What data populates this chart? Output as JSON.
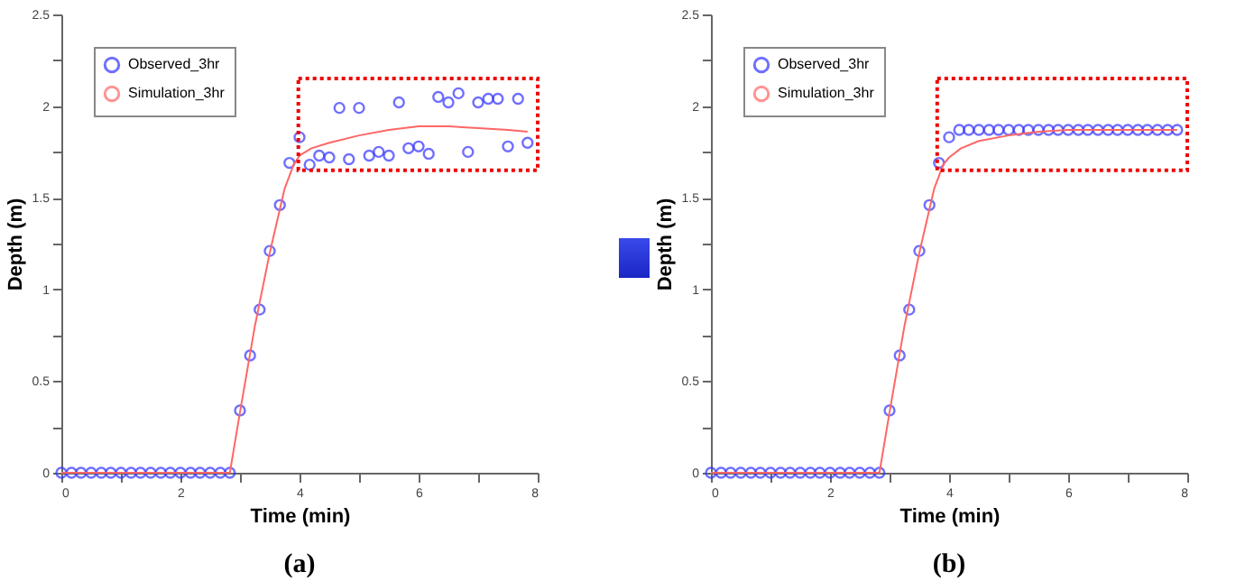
{
  "chart_data": [
    {
      "type": "scatter",
      "title": "(a)",
      "xlabel": "Time (min)",
      "ylabel": "Depth (m)",
      "xlim": [
        0,
        8
      ],
      "ylim": [
        0,
        2.5
      ],
      "xticks": [
        0,
        {
          "value": 1,
          "label": null
        },
        2,
        {
          "value": 3,
          "label": null
        },
        4,
        {
          "value": 5,
          "label": null
        },
        6,
        {
          "value": 7,
          "label": null
        },
        8
      ],
      "yticks": [
        0,
        {
          "value": 0.25,
          "label": null
        },
        0.5,
        {
          "value": 0.75,
          "label": null
        },
        1,
        {
          "value": 1.25,
          "label": null
        },
        1.5,
        {
          "value": 1.75,
          "label": null
        },
        2,
        {
          "value": 2.25,
          "label": null
        },
        2.5
      ],
      "legend": "top left",
      "line_style": "solid",
      "x": [
        0,
        0.17,
        0.33,
        0.5,
        0.67,
        0.83,
        1,
        1.17,
        1.33,
        1.5,
        1.67,
        1.83,
        2,
        2.17,
        2.33,
        2.5,
        2.67,
        2.83,
        3,
        3.17,
        3.33,
        3.5,
        3.67,
        3.83,
        4,
        4.17,
        4.33,
        4.5,
        4.67,
        4.83,
        5,
        5.17,
        5.33,
        5.5,
        5.67,
        5.83,
        6,
        6.17,
        6.33,
        6.5,
        6.67,
        6.83,
        7,
        7.17,
        7.33,
        7.5,
        7.67,
        7.83
      ],
      "series": [
        {
          "name": "Observed_3hr",
          "color": "#3333ff",
          "marker": "circle",
          "values": [
            0,
            0,
            0,
            0,
            0,
            0,
            0,
            0,
            0,
            0,
            0,
            0,
            0,
            0,
            0,
            0,
            0,
            0,
            0.34,
            0.64,
            0.89,
            1.21,
            1.46,
            1.69,
            1.83,
            1.68,
            1.73,
            1.72,
            1.99,
            1.71,
            1.99,
            1.73,
            1.75,
            1.73,
            2.02,
            1.77,
            1.78,
            1.74,
            2.05,
            2.02,
            2.07,
            1.75,
            2.02,
            2.04,
            2.04,
            1.78,
            2.04,
            1.8
          ]
        },
        {
          "name": "Simulation_3hr",
          "type": "line",
          "color": "#ff6666",
          "x": [
            0,
            2.83,
            3,
            3.25,
            3.5,
            3.75,
            3.9,
            4,
            4.2,
            4.5,
            5,
            5.5,
            6,
            6.5,
            7,
            7.5,
            7.83
          ],
          "values": [
            0,
            0,
            0.33,
            0.8,
            1.2,
            1.55,
            1.68,
            1.73,
            1.77,
            1.8,
            1.84,
            1.87,
            1.89,
            1.89,
            1.88,
            1.87,
            1.86
          ]
        }
      ]
    },
    {
      "type": "scatter",
      "title": "(b)",
      "xlabel": "Time (min)",
      "ylabel": "Depth (m)",
      "xlim": [
        0,
        8
      ],
      "ylim": [
        0,
        2.5
      ],
      "xticks": [
        0,
        {
          "value": 1,
          "label": null
        },
        2,
        {
          "value": 3,
          "label": null
        },
        4,
        {
          "value": 5,
          "label": null
        },
        6,
        {
          "value": 7,
          "label": null
        },
        8
      ],
      "yticks": [
        0,
        {
          "value": 0.25,
          "label": null
        },
        0.5,
        {
          "value": 0.75,
          "label": null
        },
        1,
        {
          "value": 1.25,
          "label": null
        },
        1.5,
        {
          "value": 1.75,
          "label": null
        },
        2,
        {
          "value": 2.25,
          "label": null
        },
        2.5
      ],
      "legend": "top left",
      "line_style": "solid",
      "x": [
        0,
        0.17,
        0.33,
        0.5,
        0.67,
        0.83,
        1,
        1.17,
        1.33,
        1.5,
        1.67,
        1.83,
        2,
        2.17,
        2.33,
        2.5,
        2.67,
        2.83,
        3,
        3.17,
        3.33,
        3.5,
        3.67,
        3.83,
        4,
        4.17,
        4.33,
        4.5,
        4.67,
        4.83,
        5,
        5.17,
        5.33,
        5.5,
        5.67,
        5.83,
        6,
        6.17,
        6.33,
        6.5,
        6.67,
        6.83,
        7,
        7.17,
        7.33,
        7.5,
        7.67,
        7.83
      ],
      "series": [
        {
          "name": "Observed_3hr",
          "color": "#3333ff",
          "marker": "circle",
          "values": [
            0,
            0,
            0,
            0,
            0,
            0,
            0,
            0,
            0,
            0,
            0,
            0,
            0,
            0,
            0,
            0,
            0,
            0,
            0.34,
            0.64,
            0.89,
            1.21,
            1.46,
            1.69,
            1.83,
            1.87,
            1.87,
            1.87,
            1.87,
            1.87,
            1.87,
            1.87,
            1.87,
            1.87,
            1.87,
            1.87,
            1.87,
            1.87,
            1.87,
            1.87,
            1.87,
            1.87,
            1.87,
            1.87,
            1.87,
            1.87,
            1.87,
            1.87
          ]
        },
        {
          "name": "Simulation_3hr",
          "type": "line",
          "color": "#ff6666",
          "x": [
            0,
            2.83,
            3,
            3.25,
            3.5,
            3.75,
            3.9,
            4,
            4.2,
            4.5,
            5,
            5.5,
            6,
            6.5,
            7,
            7.5,
            7.83
          ],
          "values": [
            0,
            0,
            0.33,
            0.8,
            1.2,
            1.55,
            1.68,
            1.72,
            1.77,
            1.81,
            1.84,
            1.86,
            1.87,
            1.87,
            1.87,
            1.87,
            1.87
          ]
        }
      ]
    }
  ]
}
